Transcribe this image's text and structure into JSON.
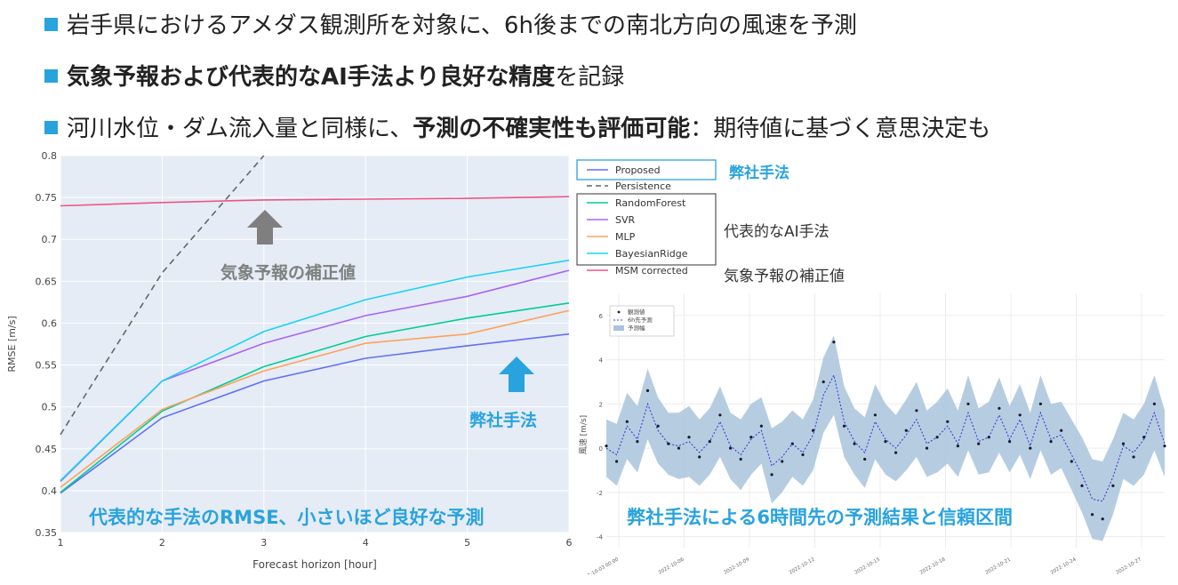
{
  "bullets": [
    {
      "parts": [
        {
          "text": "岩手県におけるアメダス観測所を対象に、6h後までの南北方向の風速を予測",
          "bold": false
        }
      ]
    },
    {
      "parts": [
        {
          "text": "気象予報および代表的なAI手法より良好な精度",
          "bold": true
        },
        {
          "text": "を記録",
          "bold": false
        }
      ]
    },
    {
      "parts": [
        {
          "text": "河川水位・ダム流入量と同様に、",
          "bold": false
        },
        {
          "text": "予測の不確実性も評価可能",
          "bold": true
        },
        {
          "text": "：期待値に基づく意思決定も",
          "bold": false
        }
      ]
    }
  ],
  "legend_groups": {
    "proposed": "弊社手法",
    "ai": "代表的なAI手法",
    "msm": "気象予報の補正値"
  },
  "annotations": {
    "msm_label": "気象予報の補正値",
    "proposed_label": "弊社手法",
    "rmse_caption": "代表的な手法のRMSE、小さいほど良好な予測",
    "forecast_caption": "弊社手法による6時間先の予測結果と信頼区間"
  },
  "colors": {
    "accent": "#29a3de",
    "gray_arrow": "#7f7f7f",
    "plot_bg": "#e5ecf6"
  },
  "chart_data": [
    {
      "type": "line",
      "title": "",
      "xlabel": "Forecast horizon [hour]",
      "ylabel": "RMSE [m/s]",
      "x": [
        1,
        2,
        3,
        4,
        5,
        6
      ],
      "xlim": [
        1,
        6
      ],
      "ylim": [
        0.35,
        0.8
      ],
      "yticks": [
        0.35,
        0.4,
        0.45,
        0.5,
        0.55,
        0.6,
        0.65,
        0.7,
        0.75,
        0.8
      ],
      "xticks": [
        1,
        2,
        3,
        4,
        5,
        6
      ],
      "grid": true,
      "legend_position": "right-outside",
      "series": [
        {
          "name": "Proposed",
          "color": "#636efa",
          "dash": false,
          "values": [
            0.397,
            0.487,
            0.531,
            0.558,
            0.573,
            0.587
          ]
        },
        {
          "name": "Persistence",
          "color": "#666666",
          "dash": true,
          "values": [
            0.467,
            0.66,
            0.8,
            null,
            null,
            null
          ]
        },
        {
          "name": "RandomForest",
          "color": "#00cc96",
          "dash": false,
          "values": [
            0.398,
            0.495,
            0.548,
            0.584,
            0.606,
            0.624
          ]
        },
        {
          "name": "SVR",
          "color": "#ab63fa",
          "dash": false,
          "values": [
            0.411,
            0.531,
            0.576,
            0.609,
            0.632,
            0.663
          ]
        },
        {
          "name": "MLP",
          "color": "#ffa15a",
          "dash": false,
          "values": [
            0.404,
            0.497,
            0.543,
            0.576,
            0.587,
            0.615
          ]
        },
        {
          "name": "BayesianRidge",
          "color": "#19d3f3",
          "dash": false,
          "values": [
            0.412,
            0.531,
            0.59,
            0.628,
            0.655,
            0.675
          ]
        },
        {
          "name": "MSM corrected",
          "color": "#ef5584",
          "dash": false,
          "values": [
            0.74,
            0.744,
            0.747,
            0.748,
            0.749,
            0.751
          ]
        }
      ]
    },
    {
      "type": "line",
      "title": "",
      "xlabel": "",
      "ylabel": "風速 [m/s]",
      "ylim": [
        -4.5,
        7
      ],
      "yticks": [
        -4,
        -2,
        0,
        2,
        4,
        6
      ],
      "xticks": [
        "2022-10-03 00:00",
        "2022-10-06",
        "2022-10-09",
        "2022-10-12",
        "2022-10-15",
        "2022-10-18",
        "2022-10-21",
        "2022-10-24",
        "2022-10-27"
      ],
      "legend": [
        "観測値",
        "6h先予測",
        "予測幅"
      ],
      "series": [
        {
          "name": "観測値",
          "style": "markers",
          "color": "#1a1a2e"
        },
        {
          "name": "6h先予測",
          "style": "dotted",
          "color": "#3b3bd6"
        },
        {
          "name": "予測幅",
          "style": "band",
          "color": "#a9c4dc"
        }
      ],
      "x_days": [
        0,
        0.5,
        1,
        1.5,
        2,
        2.5,
        3,
        3.5,
        4,
        4.5,
        5,
        5.5,
        6,
        6.5,
        7,
        7.5,
        8,
        8.5,
        9,
        9.5,
        10,
        10.5,
        11,
        11.5,
        12,
        12.5,
        13,
        13.5,
        14,
        14.5,
        15,
        15.5,
        16,
        16.5,
        17,
        17.5,
        18,
        18.5,
        19,
        19.5,
        20,
        20.5,
        21,
        21.5,
        22,
        22.5,
        23,
        23.5,
        24,
        24.5,
        25,
        25.5,
        26,
        26.5,
        27
      ],
      "observed": [
        0.1,
        -0.6,
        1.2,
        0.3,
        2.6,
        1.0,
        0.2,
        0.0,
        0.5,
        -0.4,
        0.3,
        1.5,
        0.0,
        -0.5,
        0.5,
        1.0,
        -1.2,
        -0.6,
        0.2,
        -0.3,
        0.8,
        3.0,
        4.8,
        1.0,
        0.2,
        -0.5,
        1.5,
        0.3,
        -0.2,
        0.8,
        1.7,
        0.0,
        0.5,
        1.2,
        0.1,
        2.0,
        0.2,
        0.5,
        1.8,
        0.3,
        1.5,
        0.0,
        2.0,
        0.3,
        0.8,
        -0.6,
        -1.7,
        -3.0,
        -3.2,
        -1.7,
        0.2,
        -0.4,
        0.5,
        2.0,
        0.1
      ],
      "predicted": [
        0.0,
        -0.3,
        1.0,
        0.4,
        2.0,
        0.8,
        0.2,
        0.1,
        0.3,
        -0.2,
        0.3,
        1.2,
        0.1,
        -0.3,
        0.4,
        0.8,
        -0.8,
        -0.4,
        0.2,
        -0.2,
        0.6,
        2.4,
        3.3,
        1.2,
        0.3,
        -0.2,
        1.2,
        0.4,
        0.0,
        0.6,
        1.3,
        0.2,
        0.5,
        1.0,
        0.2,
        1.6,
        0.3,
        0.5,
        1.5,
        0.4,
        1.3,
        0.1,
        1.6,
        0.4,
        0.6,
        -0.3,
        -1.2,
        -2.3,
        -2.4,
        -1.3,
        0.1,
        -0.2,
        0.4,
        1.6,
        0.2
      ],
      "band_halfwidth": [
        1.3,
        1.4,
        1.5,
        1.5,
        1.6,
        1.5,
        1.4,
        1.5,
        1.6,
        1.5,
        1.5,
        1.6,
        1.5,
        1.6,
        1.6,
        1.5,
        1.7,
        1.6,
        1.5,
        1.5,
        1.6,
        1.7,
        1.8,
        1.6,
        1.5,
        1.6,
        1.7,
        1.6,
        1.5,
        1.6,
        1.7,
        1.5,
        1.6,
        1.7,
        1.5,
        1.7,
        1.5,
        1.6,
        1.7,
        1.5,
        1.6,
        1.5,
        1.7,
        1.6,
        1.5,
        1.6,
        1.7,
        1.8,
        1.8,
        1.7,
        1.5,
        1.5,
        1.6,
        1.7,
        1.5
      ]
    }
  ]
}
